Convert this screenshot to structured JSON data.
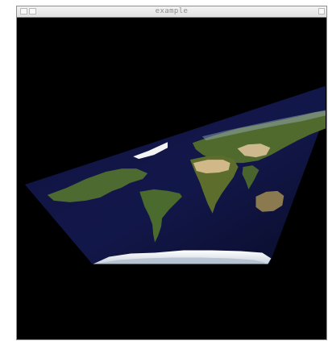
{
  "window": {
    "title": "example"
  },
  "colors": {
    "background": "#000000",
    "ocean": "#12174a",
    "ocean_dark": "#0a0d2a",
    "land_green": "#4f6a2e",
    "land_dark": "#2f4b24",
    "desert": "#cfb88c",
    "ice": "#f1f1f1",
    "ice_shadow": "#a7b4c6"
  }
}
